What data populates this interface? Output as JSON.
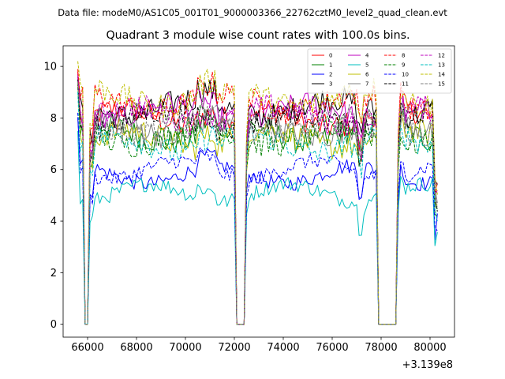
{
  "chart_data": {
    "type": "line",
    "suptitle": "Data file: modeM0/AS1C05_001T01_9000003366_22762cztM0_level2_quad_clean.evt",
    "title": "Quadrant 3 module wise count rates with 100.0s bins.",
    "xlabel": "",
    "ylabel": "",
    "x_offset_label": "+3.139e8",
    "xlim": [
      65000,
      81000
    ],
    "ylim": [
      -0.5,
      10.8
    ],
    "x_ticks": [
      66000,
      68000,
      70000,
      72000,
      74000,
      76000,
      78000,
      80000
    ],
    "y_ticks": [
      0,
      2,
      4,
      6,
      8,
      10
    ],
    "grid": false,
    "legend_position": "top-right",
    "legend_columns": 4,
    "gaps": [
      [
        65800,
        66100
      ],
      [
        72050,
        72450
      ],
      [
        77850,
        78650
      ]
    ],
    "series": [
      {
        "name": "0",
        "color": "#ff0000",
        "dash": "solid",
        "level": 8.0,
        "spike_start": 9.8
      },
      {
        "name": "1",
        "color": "#008000",
        "dash": "solid",
        "level": 7.4,
        "spike_start": 9.4
      },
      {
        "name": "2",
        "color": "#0000ff",
        "dash": "solid",
        "level": 5.8,
        "spike_start": 8.0
      },
      {
        "name": "3",
        "color": "#000000",
        "dash": "solid",
        "level": 8.4,
        "spike_start": 9.6
      },
      {
        "name": "4",
        "color": "#bf00bf",
        "dash": "solid",
        "level": 8.2,
        "spike_start": 9.7
      },
      {
        "name": "5",
        "color": "#00bfbf",
        "dash": "solid",
        "level": 5.1,
        "spike_start": 7.5
      },
      {
        "name": "6",
        "color": "#bfbf00",
        "dash": "solid",
        "level": 7.2,
        "spike_start": 9.3
      },
      {
        "name": "7",
        "color": "#808080",
        "dash": "solid",
        "level": 7.6,
        "spike_start": 9.5
      },
      {
        "name": "8",
        "color": "#ff0000",
        "dash": "dashed",
        "level": 8.6,
        "spike_start": 9.9
      },
      {
        "name": "9",
        "color": "#008000",
        "dash": "dashed",
        "level": 7.3,
        "spike_start": 9.2
      },
      {
        "name": "10",
        "color": "#0000ff",
        "dash": "dashed",
        "level": 6.0,
        "spike_start": 8.2
      },
      {
        "name": "11",
        "color": "#000000",
        "dash": "dashed",
        "level": 7.9,
        "spike_start": 9.5
      },
      {
        "name": "12",
        "color": "#bf00bf",
        "dash": "dashed",
        "level": 8.1,
        "spike_start": 9.6
      },
      {
        "name": "13",
        "color": "#00bfbf",
        "dash": "dashed",
        "level": 7.0,
        "spike_start": 9.0
      },
      {
        "name": "14",
        "color": "#bfbf00",
        "dash": "dashed",
        "level": 8.8,
        "spike_start": 10.2
      },
      {
        "name": "15",
        "color": "#808080",
        "dash": "dashed",
        "level": 7.7,
        "spike_start": 9.4
      }
    ]
  }
}
